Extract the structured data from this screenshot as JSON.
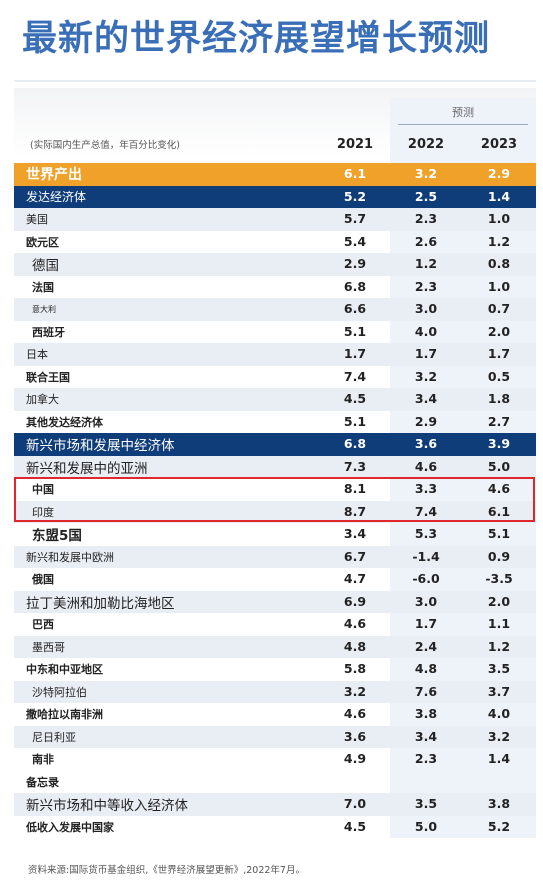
{
  "title": "最新的世界经济展望增长预测",
  "forecast_label": "预测",
  "unit_note": "(实际国内生产总值，年百分比变化)",
  "years": [
    "2021",
    "2022",
    "2023"
  ],
  "rows": [
    {
      "label": "世界产出",
      "v": [
        "6.1",
        "3.2",
        "2.9"
      ],
      "style": "orange"
    },
    {
      "label": "发达经济体",
      "v": [
        "5.2",
        "2.5",
        "1.4"
      ],
      "style": "navy"
    },
    {
      "label": "美国",
      "v": [
        "5.7",
        "2.3",
        "1.0"
      ],
      "style": "alt"
    },
    {
      "label": "欧元区",
      "v": [
        "5.4",
        "2.6",
        "1.2"
      ],
      "style": "plain bold"
    },
    {
      "label": "德国",
      "v": [
        "2.9",
        "1.2",
        "0.8"
      ],
      "style": "alt big indent"
    },
    {
      "label": "法国",
      "v": [
        "6.8",
        "2.3",
        "1.0"
      ],
      "style": "plain bold indent"
    },
    {
      "label": "意大利",
      "v": [
        "6.6",
        "3.0",
        "0.7"
      ],
      "style": "alt small indent"
    },
    {
      "label": "西班牙",
      "v": [
        "5.1",
        "4.0",
        "2.0"
      ],
      "style": "plain bold indent"
    },
    {
      "label": "日本",
      "v": [
        "1.7",
        "1.7",
        "1.7"
      ],
      "style": "alt"
    },
    {
      "label": "联合王国",
      "v": [
        "7.4",
        "3.2",
        "0.5"
      ],
      "style": "plain bold"
    },
    {
      "label": "加拿大",
      "v": [
        "4.5",
        "3.4",
        "1.8"
      ],
      "style": "alt"
    },
    {
      "label": "其他发达经济体",
      "v": [
        "5.1",
        "2.9",
        "2.7"
      ],
      "style": "plain bold"
    },
    {
      "label": "新兴市场和发展中经济体",
      "v": [
        "6.8",
        "3.6",
        "3.9"
      ],
      "style": "navy big"
    },
    {
      "label": "新兴和发展中的亚洲",
      "v": [
        "7.3",
        "4.6",
        "5.0"
      ],
      "style": "alt big"
    },
    {
      "label": "中国",
      "v": [
        "8.1",
        "3.3",
        "4.6"
      ],
      "style": "plain bold indent"
    },
    {
      "label": "印度",
      "v": [
        "8.7",
        "7.4",
        "6.1"
      ],
      "style": "alt indent"
    },
    {
      "label": "东盟5国",
      "v": [
        "3.4",
        "5.3",
        "5.1"
      ],
      "style": "plain big bold indent"
    },
    {
      "label": "新兴和发展中欧洲",
      "v": [
        "6.7",
        "-1.4",
        "0.9"
      ],
      "style": "alt"
    },
    {
      "label": "俄国",
      "v": [
        "4.7",
        "-6.0",
        "-3.5"
      ],
      "style": "plain bold indent"
    },
    {
      "label": "拉丁美洲和加勒比海地区",
      "v": [
        "6.9",
        "3.0",
        "2.0"
      ],
      "style": "alt big"
    },
    {
      "label": "巴西",
      "v": [
        "4.6",
        "1.7",
        "1.1"
      ],
      "style": "plain bold indent"
    },
    {
      "label": "墨西哥",
      "v": [
        "4.8",
        "2.4",
        "1.2"
      ],
      "style": "alt indent"
    },
    {
      "label": "中东和中亚地区",
      "v": [
        "5.8",
        "4.8",
        "3.5"
      ],
      "style": "plain bold"
    },
    {
      "label": "沙特阿拉伯",
      "v": [
        "3.2",
        "7.6",
        "3.7"
      ],
      "style": "alt indent"
    },
    {
      "label": "撒哈拉以南非洲",
      "v": [
        "4.6",
        "3.8",
        "4.0"
      ],
      "style": "plain bold"
    },
    {
      "label": "尼日利亚",
      "v": [
        "3.6",
        "3.4",
        "3.2"
      ],
      "style": "alt indent"
    },
    {
      "label": "南非",
      "v": [
        "4.9",
        "2.3",
        "1.4"
      ],
      "style": "plain bold indent"
    },
    {
      "label": "备忘录",
      "v": [
        "",
        "",
        ""
      ],
      "style": "plain bold"
    },
    {
      "label": "新兴市场和中等收入经济体",
      "v": [
        "7.0",
        "3.5",
        "3.8"
      ],
      "style": "alt big"
    },
    {
      "label": "低收入发展中国家",
      "v": [
        "4.5",
        "5.0",
        "5.2"
      ],
      "style": "plain bold"
    }
  ],
  "source_note": "资料来源:国际货币基金组织,《世界经济展望更新》,2022年7月。",
  "colors": {
    "title": "#3a6fb8",
    "orange_row": "#f0a12a",
    "navy_row": "#0f3d7a",
    "alt_row": "#e9eef5",
    "highlight": "#e1262d"
  }
}
